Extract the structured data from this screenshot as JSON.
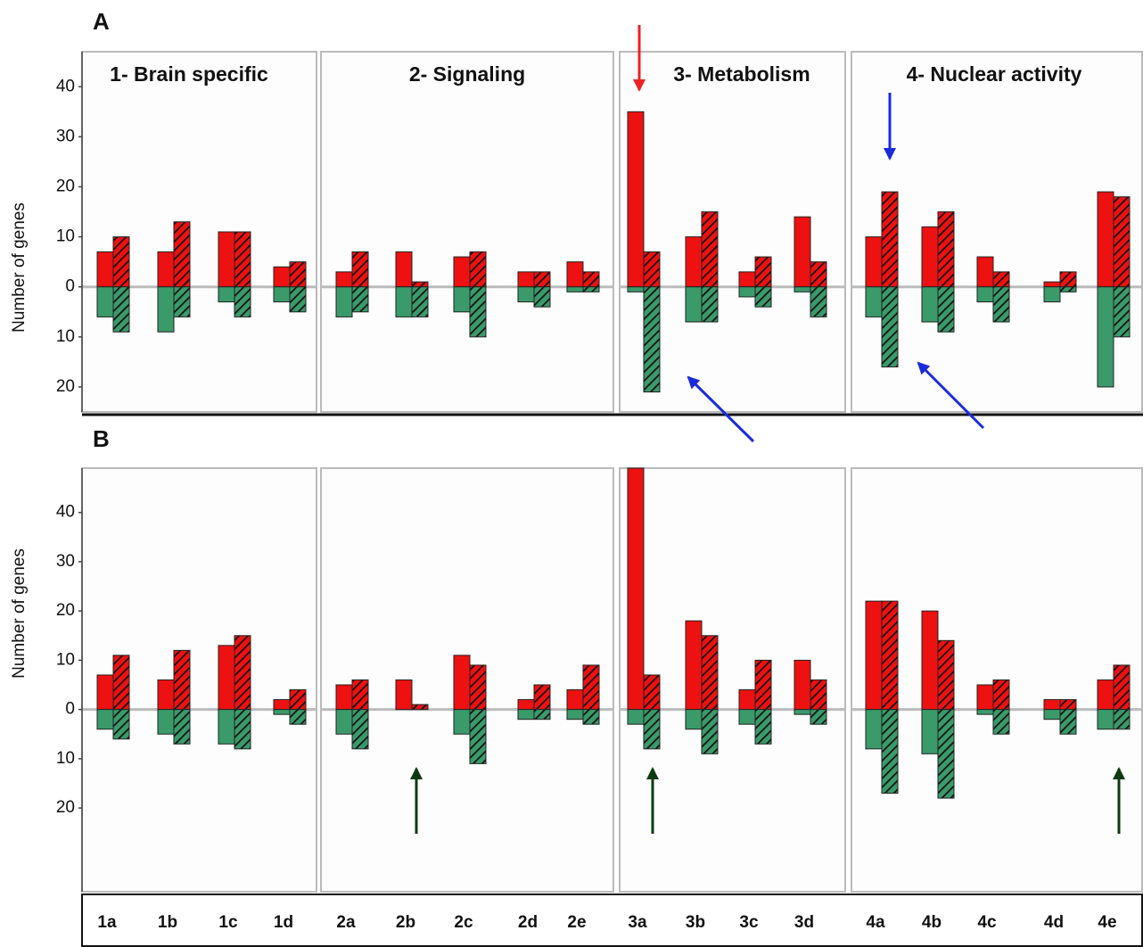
{
  "chart_data": {
    "type": "bar",
    "ylabel": "Number of genes",
    "groups": [
      {
        "title": "1- Brain specific",
        "categories": [
          "1a",
          "1b",
          "1c",
          "1d"
        ]
      },
      {
        "title": "2- Signaling",
        "categories": [
          "2a",
          "2b",
          "2c",
          "2d",
          "2e"
        ]
      },
      {
        "title": "3- Metabolism",
        "categories": [
          "3a",
          "3b",
          "3c",
          "3d"
        ]
      },
      {
        "title": "4- Nuclear activity",
        "categories": [
          "4a",
          "4b",
          "4c",
          "4d",
          "4e"
        ]
      }
    ],
    "panels": [
      {
        "label": "A",
        "ylim": [
          -25,
          47
        ],
        "yticks": [
          {
            "value": -20,
            "label": "20"
          },
          {
            "value": -10,
            "label": "10"
          },
          0,
          10,
          20,
          30,
          40
        ],
        "series": [
          {
            "color": "#ee1111",
            "hatched": false,
            "values": [
              7,
              7,
              11,
              4,
              3,
              7,
              6,
              3,
              5,
              35,
              10,
              3,
              14,
              10,
              12,
              6,
              1,
              19
            ]
          },
          {
            "color": "#ee1111",
            "hatched": true,
            "values": [
              10,
              13,
              11,
              5,
              7,
              1,
              7,
              3,
              3,
              7,
              15,
              6,
              5,
              19,
              15,
              3,
              3,
              18
            ]
          },
          {
            "color": "#3a9a6a",
            "hatched": false,
            "values": [
              -6,
              -9,
              -3,
              -3,
              -6,
              -6,
              -5,
              -3,
              -1,
              -1,
              -7,
              -2,
              -1,
              -6,
              -7,
              -3,
              -3,
              -20
            ]
          },
          {
            "color": "#3a9a6a",
            "hatched": true,
            "values": [
              -9,
              -6,
              -6,
              -5,
              -5,
              -6,
              -10,
              -4,
              -1,
              -21,
              -7,
              -4,
              -6,
              -16,
              -9,
              -7,
              -1,
              -10
            ]
          }
        ]
      },
      {
        "label": "B",
        "ylim": [
          -37,
          49
        ],
        "yticks": [
          {
            "value": -20,
            "label": "20"
          },
          {
            "value": -10,
            "label": "10"
          },
          0,
          10,
          20,
          30,
          40
        ],
        "series": [
          {
            "color": "#ee1111",
            "hatched": false,
            "values": [
              7,
              6,
              13,
              2,
              5,
              6,
              11,
              2,
              4,
              49,
              18,
              4,
              10,
              22,
              20,
              5,
              2,
              6
            ]
          },
          {
            "color": "#ee1111",
            "hatched": true,
            "values": [
              11,
              12,
              15,
              4,
              6,
              1,
              9,
              5,
              9,
              7,
              15,
              10,
              6,
              22,
              14,
              6,
              2,
              9
            ]
          },
          {
            "color": "#3a9a6a",
            "hatched": false,
            "values": [
              -4,
              -5,
              -7,
              -1,
              -5,
              0,
              -5,
              -2,
              -2,
              -3,
              -4,
              -3,
              -1,
              -8,
              -9,
              -1,
              -2,
              -4
            ]
          },
          {
            "color": "#3a9a6a",
            "hatched": true,
            "values": [
              -6,
              -7,
              -8,
              -3,
              -8,
              0,
              -11,
              -2,
              -3,
              -8,
              -9,
              -7,
              -3,
              -17,
              -18,
              -5,
              -5,
              -4
            ]
          }
        ]
      }
    ]
  }
}
